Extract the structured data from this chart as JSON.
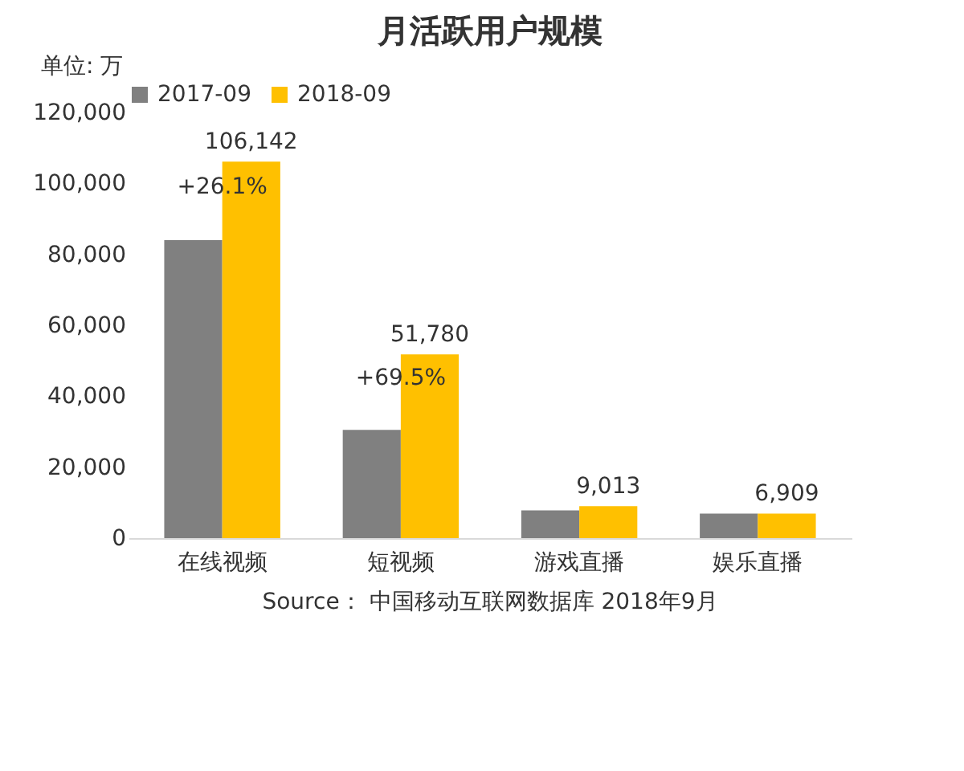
{
  "chart_data": {
    "type": "bar",
    "title": "月活跃用户规模",
    "ylabel": "单位: 万",
    "categories": [
      "在线视频",
      "短视频",
      "游戏直播",
      "娱乐直播"
    ],
    "series": [
      {
        "name": "2017-09",
        "color": "#808080",
        "values": [
          84000,
          30500,
          7800,
          6900
        ]
      },
      {
        "name": "2018-09",
        "color": "#ffc000",
        "values": [
          106142,
          51780,
          9013,
          6909
        ],
        "value_labels": [
          "106,142",
          "51,780",
          "9,013",
          "6,909"
        ]
      }
    ],
    "ylim": [
      0,
      120000
    ],
    "yticks": [
      0,
      {
        "value": 20000,
        "label": "20,000"
      },
      {
        "value": 40000,
        "label": "40,000"
      },
      {
        "value": 60000,
        "label": "60,000"
      },
      {
        "value": 80000,
        "label": "80,000"
      },
      {
        "value": 100000,
        "label": "100,000"
      },
      {
        "value": 120000,
        "label": "120,000"
      }
    ],
    "grid": false,
    "legend": "top",
    "annotations": [
      {
        "text": "+26.1%",
        "x": "在线视频",
        "y": 99000
      },
      {
        "text": "+69.5%",
        "x": "短视频",
        "y": 45000
      },
      "Source： 中国移动互联网数据库 2018年9月"
    ]
  }
}
